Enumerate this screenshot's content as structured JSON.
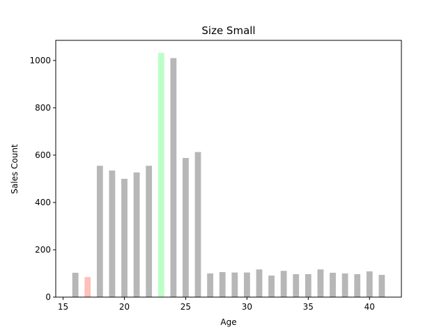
{
  "chart_data": {
    "type": "bar",
    "title": "Size Small",
    "xlabel": "Age",
    "ylabel": "Sales Count",
    "xlim": [
      14.4,
      42.6
    ],
    "ylim": [
      0,
      1085
    ],
    "xticks": [
      15,
      20,
      25,
      30,
      35,
      40
    ],
    "yticks": [
      0,
      200,
      400,
      600,
      800,
      1000
    ],
    "grid": false,
    "x": [
      16,
      17,
      18,
      19,
      20,
      21,
      22,
      23,
      24,
      25,
      26,
      27,
      28,
      29,
      30,
      31,
      32,
      33,
      34,
      35,
      36,
      37,
      38,
      39,
      40,
      41
    ],
    "values": [
      103,
      85,
      555,
      535,
      500,
      527,
      555,
      1032,
      1010,
      588,
      613,
      100,
      106,
      104,
      104,
      117,
      91,
      111,
      97,
      97,
      117,
      103,
      100,
      97,
      109,
      94
    ],
    "colors": {
      "default": "#b7b7b7",
      "min": "#ffbfbb",
      "max": "#bcffc6"
    },
    "highlight": {
      "min_age": 17,
      "max_age": 23
    }
  }
}
